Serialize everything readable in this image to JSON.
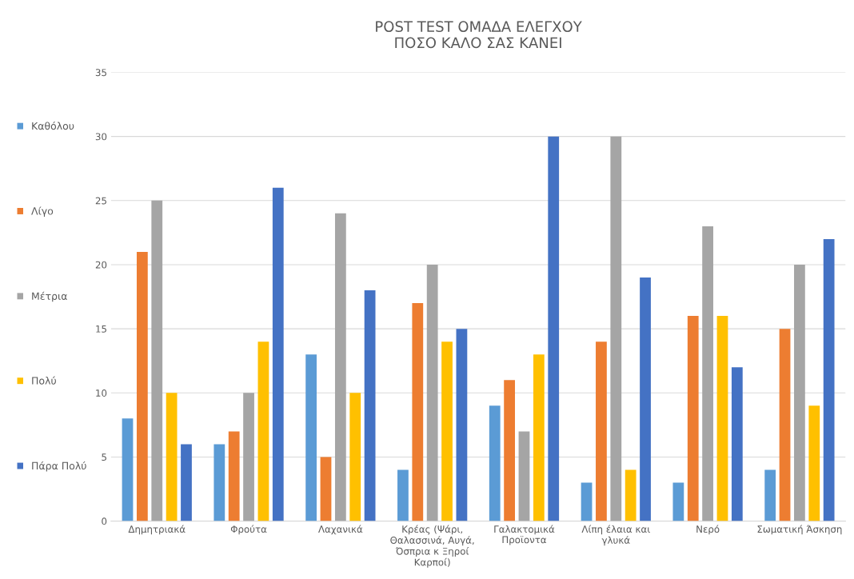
{
  "chart_data": {
    "type": "bar",
    "title": "POST TEST ΟΜΑΔΑ ΕΛΕΓΧΟΥ\nΠΟΣΟ ΚΑΛΟ ΣΑΣ ΚΑΝΕΙ",
    "categories": [
      "Δημητριακά",
      "Φρούτα",
      "Λαχανικά",
      "Κρέας (Ψάρι, Θαλασσινά, Αυγά, Όσπρια κ Ξηροί Καρποί)",
      "Γαλακτομικά Προϊοντα",
      "Λίπη έλαια και γλυκά",
      "Νερό",
      "Σωματική Άσκηση"
    ],
    "series": [
      {
        "name": "Καθόλου",
        "color": "#5b9bd5",
        "values": [
          8,
          6,
          13,
          4,
          9,
          3,
          3,
          4
        ]
      },
      {
        "name": "Λίγο",
        "color": "#ed7d31",
        "values": [
          21,
          7,
          5,
          17,
          11,
          14,
          16,
          15
        ]
      },
      {
        "name": "Μέτρια",
        "color": "#a5a5a5",
        "values": [
          25,
          10,
          24,
          20,
          7,
          30,
          23,
          20
        ]
      },
      {
        "name": "Πολύ",
        "color": "#ffc000",
        "values": [
          10,
          14,
          10,
          14,
          13,
          4,
          16,
          9
        ]
      },
      {
        "name": "Πάρα Πολύ",
        "color": "#4472c4",
        "values": [
          6,
          26,
          18,
          15,
          30,
          19,
          12,
          22
        ]
      }
    ],
    "ylim": [
      0,
      35
    ],
    "yticks": [
      0,
      5,
      10,
      15,
      20,
      25,
      30,
      35
    ],
    "grid": "y",
    "legend": "left"
  }
}
